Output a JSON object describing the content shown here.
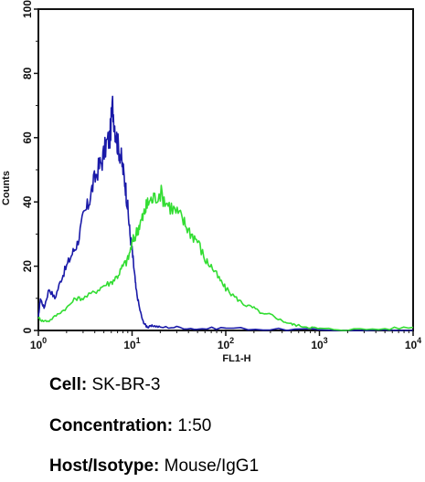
{
  "chart_data": {
    "type": "line",
    "xlabel": "FL1-H",
    "ylabel": "Counts",
    "x_scale": "log",
    "xlim": [
      1,
      10000
    ],
    "ylim": [
      0,
      100
    ],
    "x_ticks": [
      {
        "value": 1,
        "base": "10",
        "exp": "0"
      },
      {
        "value": 10,
        "base": "10",
        "exp": "1"
      },
      {
        "value": 100,
        "base": "10",
        "exp": "2"
      },
      {
        "value": 1000,
        "base": "10",
        "exp": "3"
      },
      {
        "value": 10000,
        "base": "10",
        "exp": "4"
      }
    ],
    "y_ticks": [
      0,
      20,
      40,
      60,
      80,
      100
    ],
    "grid": false,
    "legend": "none",
    "series": [
      {
        "color": "#1a1aa8",
        "x": [
          1.0,
          1.05,
          1.15,
          1.3,
          1.5,
          1.75,
          2.0,
          2.3,
          2.6,
          3.0,
          3.4,
          3.8,
          4.3,
          4.8,
          5.3,
          5.8,
          6.2,
          6.6,
          7.0,
          7.5,
          8.0,
          8.5,
          9.0,
          9.5,
          10.0,
          10.5,
          11.0,
          12.0,
          13.0,
          14.0,
          15.0,
          17.0,
          20.0,
          30.0,
          50.0,
          100.0,
          300.0,
          1000.0,
          10000.0
        ],
        "y": [
          4,
          10,
          7,
          13,
          10,
          16,
          20,
          24,
          27,
          35,
          39,
          45,
          50,
          53,
          58,
          60,
          70,
          63,
          58,
          55,
          50,
          45,
          38,
          30,
          25,
          19,
          13,
          7,
          3,
          1.5,
          1,
          1.5,
          1,
          1,
          0.5,
          0.8,
          0.3,
          0.2,
          0
        ]
      },
      {
        "color": "#33dd33",
        "x": [
          1.0,
          1.1,
          1.3,
          1.6,
          2.0,
          2.5,
          3.0,
          4.0,
          5.0,
          6.0,
          7.0,
          8.0,
          9.0,
          10.0,
          11.0,
          12.0,
          13.0,
          14.0,
          15.0,
          17.0,
          20.0,
          23.0,
          27.0,
          32.0,
          37.0,
          43.0,
          50.0,
          60.0,
          70.0,
          85.0,
          100.0,
          130.0,
          160.0,
          200.0,
          250.0,
          300.0,
          400.0,
          500.0,
          600.0,
          800.0,
          1000.0,
          2000.0,
          5000.0,
          10000.0
        ],
        "y": [
          4,
          3,
          3,
          5,
          7,
          10,
          10,
          12,
          14,
          15,
          17,
          20,
          22,
          27,
          30,
          33,
          35,
          38,
          40,
          41,
          43,
          40,
          38,
          36,
          33,
          30,
          28,
          22,
          20,
          16,
          13,
          10,
          8,
          7,
          5,
          5,
          3,
          2,
          1.5,
          1,
          0.5,
          0.3,
          0.5,
          1
        ]
      }
    ]
  },
  "info": {
    "cell_label": "Cell:",
    "cell_value": "SK-BR-3",
    "concentration_label": "Concentration:",
    "concentration_value": "1:50",
    "host_label": "Host/Isotype:",
    "host_value": "Mouse/IgG1"
  }
}
